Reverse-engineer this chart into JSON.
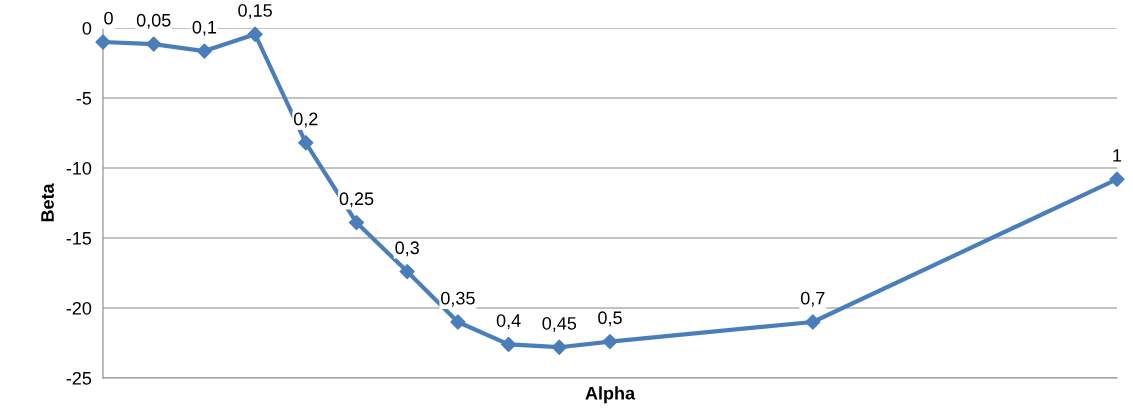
{
  "chart_data": {
    "type": "line",
    "xlabel": "Alpha",
    "ylabel": "Beta",
    "categories": [
      null,
      null,
      null,
      null,
      null,
      null,
      null,
      null,
      null,
      null,
      null,
      null,
      null,
      null,
      null,
      null,
      null,
      null,
      null,
      null,
      null
    ],
    "series": [
      {
        "color": "#4a7ebb",
        "values": [
          -1.0,
          -1.15,
          -1.65,
          -0.45,
          -8.2,
          -13.9,
          -17.4,
          -21.0,
          -22.6,
          -22.8,
          -22.4,
          null,
          null,
          null,
          -21.0,
          null,
          null,
          null,
          null,
          null,
          -10.8
        ]
      }
    ],
    "ylim": [
      -25,
      0
    ],
    "yticks": [
      -25,
      -20,
      -15,
      -10,
      -5,
      0
    ],
    "grid": "y",
    "tick_labels": "y",
    "marker": "diamond",
    "line_style": "solid",
    "annotations": [
      "0",
      "0,05",
      "0,1",
      "0,15",
      "0,2",
      "0,25",
      "0,3",
      "0,35",
      "0,4",
      "0,45",
      "0,5",
      "0,7",
      "1"
    ]
  }
}
